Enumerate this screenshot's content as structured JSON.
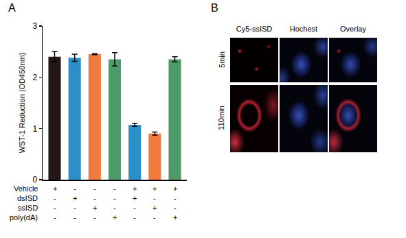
{
  "chart_data": {
    "type": "bar",
    "y_label": "WST-1 Reduction (OD450nm)",
    "categories": [
      null,
      null,
      null,
      null,
      null,
      null,
      null
    ],
    "values": [
      2.4,
      2.38,
      2.45,
      2.35,
      1.07,
      0.9,
      2.35
    ],
    "errors": [
      0.1,
      0.07,
      0.01,
      0.13,
      0.03,
      0.03,
      0.05
    ],
    "colors": [
      "#231815",
      "#2b90c8",
      "#f07b3f",
      "#4f9a6a",
      "#2b90c8",
      "#f07b3f",
      "#4f9a6a"
    ],
    "ylim": [
      0,
      3
    ],
    "yticks": [
      0,
      1,
      2,
      3
    ],
    "grid": false,
    "tick_labels": "y",
    "treatments": [
      {
        "name": "Vehicle",
        "marks": [
          "+",
          "-",
          "-",
          "-",
          "+",
          "+",
          "+"
        ]
      },
      {
        "name": "dsISD",
        "marks": [
          "-",
          "+",
          "-",
          "-",
          "+",
          "-",
          "-"
        ]
      },
      {
        "name": "ssISD",
        "marks": [
          "-",
          "-",
          "+",
          "-",
          "-",
          "+",
          "-"
        ]
      },
      {
        "name": "poly(dA)",
        "marks": [
          "-",
          "-",
          "-",
          "+",
          "-",
          "-",
          "+"
        ]
      }
    ],
    "panel_label": "A"
  },
  "image_panel": {
    "panel_label": "B",
    "columns": [
      "Cy5-ssISD",
      "Hochest",
      "Overlay"
    ],
    "rows": [
      "5min",
      "110min"
    ]
  }
}
